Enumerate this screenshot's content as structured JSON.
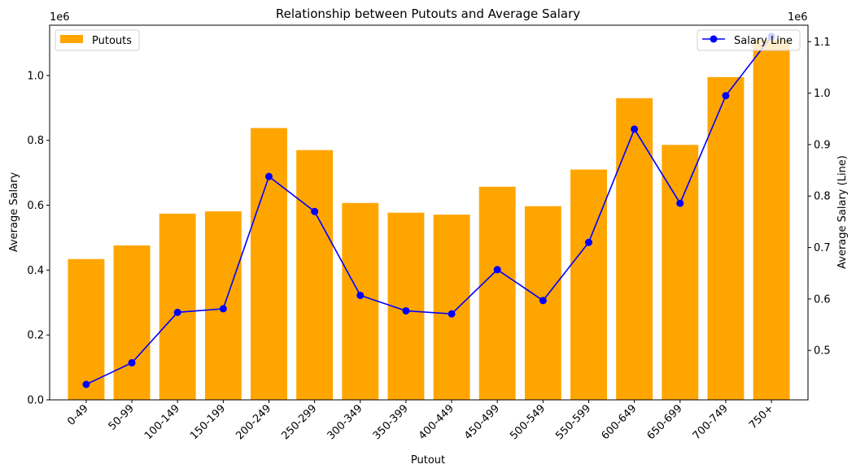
{
  "chart_data": {
    "type": "bar",
    "title": "Relationship between Putouts and Average Salary",
    "xlabel": "Putout",
    "ylabel": "Average Salary",
    "y2label": "Average Salary (Line)",
    "y_offset_label": "1e6",
    "y2_offset_label": "1e6",
    "categories": [
      "0-49",
      "50-99",
      "100-149",
      "150-199",
      "200-249",
      "250-299",
      "300-349",
      "350-399",
      "400-449",
      "450-499",
      "500-549",
      "550-599",
      "600-649",
      "650-699",
      "700-749",
      "750+"
    ],
    "series": [
      {
        "name": "Putouts",
        "type": "bar",
        "axis": "left",
        "color": "#ffa500",
        "values": [
          434000,
          476000,
          574000,
          581000,
          838000,
          770000,
          607000,
          577000,
          571000,
          657000,
          597000,
          710000,
          930000,
          786000,
          995000,
          1110000
        ]
      },
      {
        "name": "Salary Line",
        "type": "line",
        "axis": "right",
        "color": "#0000ff",
        "marker": "circle",
        "values": [
          434000,
          476000,
          574000,
          581000,
          838000,
          770000,
          607000,
          577000,
          571000,
          657000,
          597000,
          710000,
          930000,
          786000,
          995000,
          1110000
        ]
      }
    ],
    "ylim": [
      0,
      1155000
    ],
    "y2lim": [
      404000,
      1132000
    ],
    "yticks": [
      0,
      200000,
      400000,
      600000,
      800000,
      1000000
    ],
    "ytick_labels": [
      "0.0",
      "0.2",
      "0.4",
      "0.6",
      "0.8",
      "1.0"
    ],
    "y2ticks": [
      500000,
      600000,
      700000,
      800000,
      900000,
      1000000,
      1100000
    ],
    "y2tick_labels": [
      "0.5",
      "0.6",
      "0.7",
      "0.8",
      "0.9",
      "1.0",
      "1.1"
    ],
    "legend_left_position": "top-left",
    "legend_right_position": "top-right",
    "grid": false
  }
}
